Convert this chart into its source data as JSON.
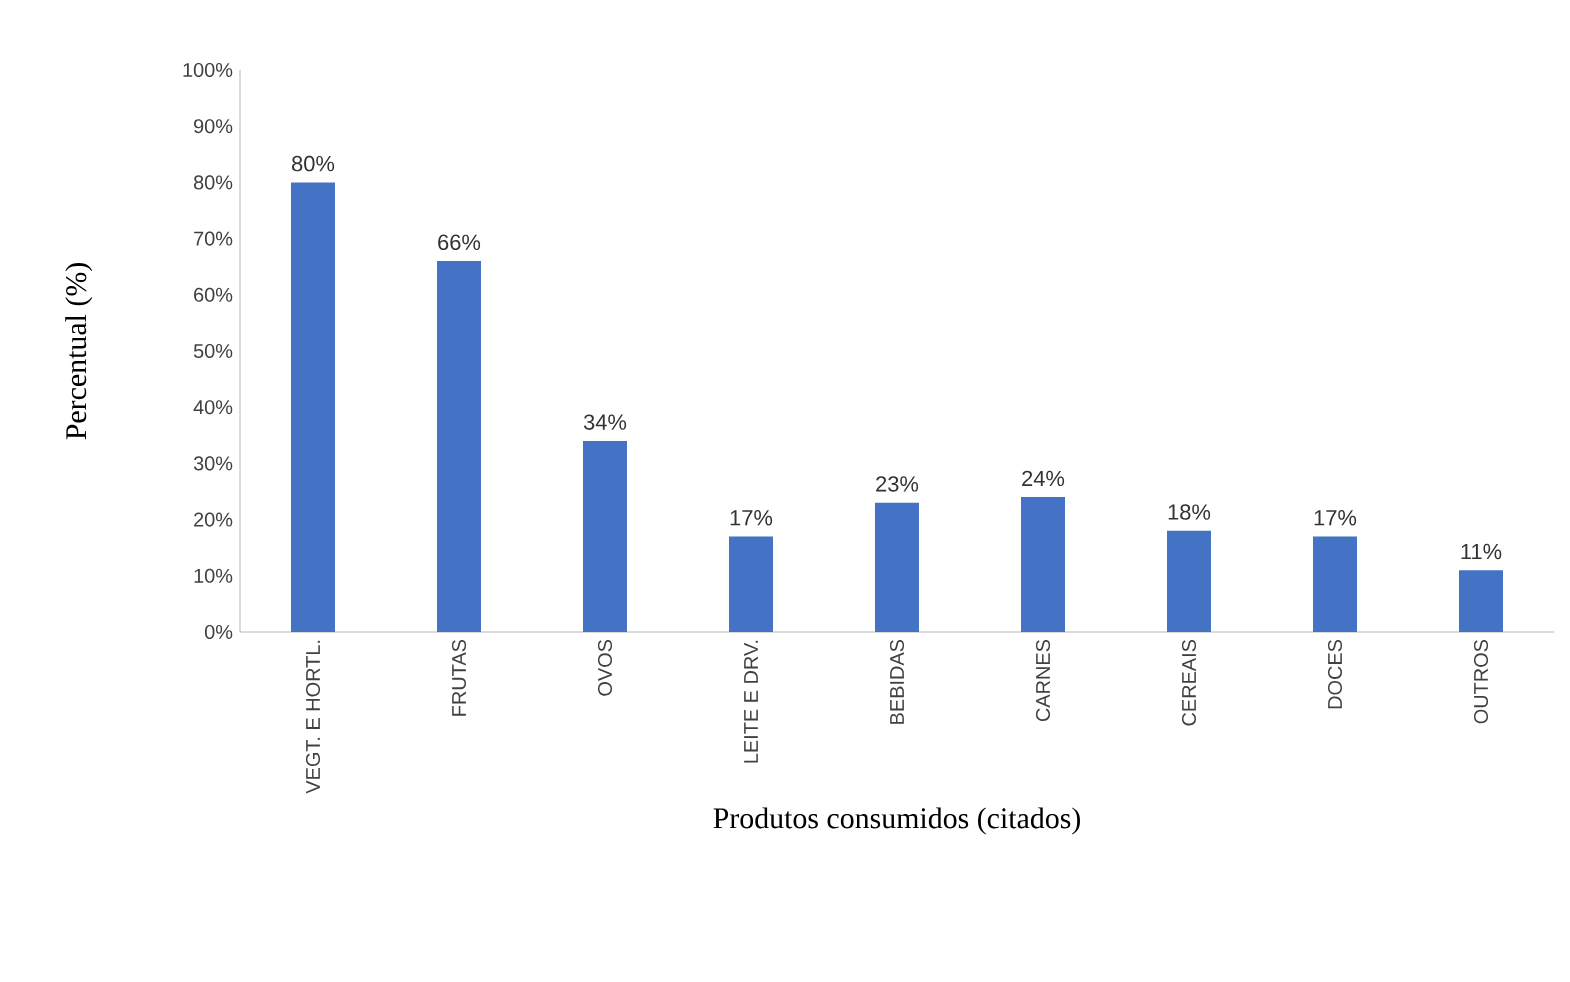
{
  "chart_data": {
    "type": "bar",
    "xlabel": "Produtos consumidos (citados)",
    "ylabel": "Percentual (%)",
    "categories": [
      "VEGT. E HORTL.",
      "FRUTAS",
      "OVOS",
      "LEITE E DRV.",
      "BEBIDAS",
      "CARNES",
      "CEREAIS",
      "DOCES",
      "OUTROS"
    ],
    "values": [
      80,
      66,
      34,
      17,
      23,
      24,
      18,
      17,
      11
    ],
    "value_labels": [
      "80%",
      "66%",
      "34%",
      "17%",
      "23%",
      "24%",
      "18%",
      "17%",
      "11%"
    ],
    "color": "#4472c4",
    "ylim": [
      0,
      100
    ],
    "yticks": [
      {
        "value": 0,
        "label": "0%"
      },
      {
        "value": 10,
        "label": "10%"
      },
      {
        "value": 20,
        "label": "20%"
      },
      {
        "value": 30,
        "label": "30%"
      },
      {
        "value": 40,
        "label": "40%"
      },
      {
        "value": 50,
        "label": "50%"
      },
      {
        "value": 60,
        "label": "60%"
      },
      {
        "value": 70,
        "label": "70%"
      },
      {
        "value": 80,
        "label": "80%"
      },
      {
        "value": 90,
        "label": "90%"
      },
      {
        "value": 100,
        "label": "100%"
      }
    ],
    "grid": false
  }
}
